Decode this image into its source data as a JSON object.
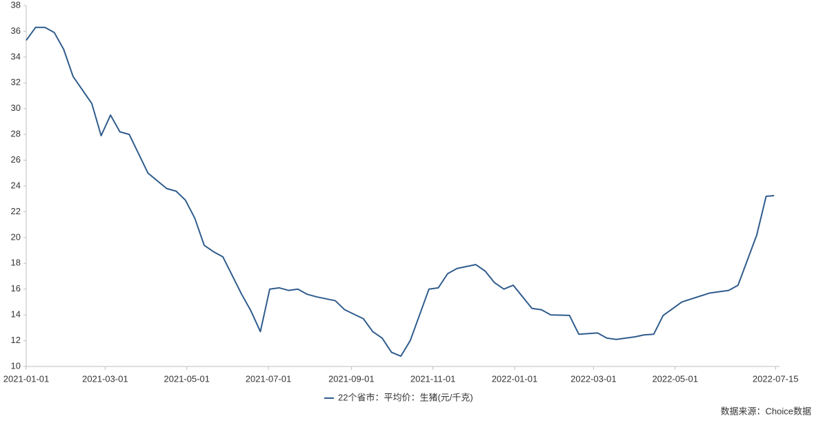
{
  "chart_data": {
    "type": "line",
    "x": [
      "2021-01-01",
      "2021-01-08",
      "2021-01-15",
      "2021-01-22",
      "2021-01-29",
      "2021-02-05",
      "2021-02-19",
      "2021-02-26",
      "2021-03-05",
      "2021-03-12",
      "2021-03-19",
      "2021-04-02",
      "2021-04-16",
      "2021-04-23",
      "2021-04-30",
      "2021-05-07",
      "2021-05-14",
      "2021-05-21",
      "2021-05-28",
      "2021-06-11",
      "2021-06-18",
      "2021-06-25",
      "2021-07-02",
      "2021-07-09",
      "2021-07-16",
      "2021-07-23",
      "2021-07-30",
      "2021-08-06",
      "2021-08-20",
      "2021-08-27",
      "2021-09-10",
      "2021-09-17",
      "2021-09-24",
      "2021-10-01",
      "2021-10-08",
      "2021-10-15",
      "2021-10-29",
      "2021-11-05",
      "2021-11-12",
      "2021-11-19",
      "2021-12-03",
      "2021-12-10",
      "2021-12-17",
      "2021-12-24",
      "2021-12-31",
      "2022-01-14",
      "2022-01-21",
      "2022-01-28",
      "2022-02-11",
      "2022-02-18",
      "2022-03-04",
      "2022-03-11",
      "2022-03-18",
      "2022-04-01",
      "2022-04-08",
      "2022-04-15",
      "2022-04-22",
      "2022-05-06",
      "2022-05-27",
      "2022-06-10",
      "2022-06-17",
      "2022-07-01",
      "2022-07-08",
      "2022-07-14"
    ],
    "series": [
      {
        "name": "22个省市：平均价：生猪(元/千克)",
        "color": "#2e5b8c",
        "values": [
          35.3,
          36.3,
          36.3,
          35.9,
          34.6,
          32.5,
          30.4,
          27.9,
          29.5,
          28.2,
          28.0,
          25.0,
          23.8,
          23.6,
          22.9,
          21.5,
          19.4,
          18.9,
          18.5,
          15.6,
          14.3,
          12.7,
          16.0,
          16.1,
          15.9,
          16.0,
          15.6,
          15.4,
          15.1,
          14.4,
          13.7,
          12.7,
          12.2,
          11.1,
          10.8,
          12.0,
          16.0,
          16.1,
          17.2,
          17.6,
          17.9,
          17.4,
          16.5,
          16.0,
          16.3,
          14.5,
          14.4,
          14.0,
          13.96,
          12.5,
          12.6,
          12.2,
          12.1,
          12.3,
          12.45,
          12.5,
          13.95,
          15.0,
          15.7,
          15.9,
          16.3,
          20.2,
          23.2,
          23.25
        ]
      }
    ],
    "xlim": [
      "2021-01-01",
      "2022-07-18"
    ],
    "xticks": [
      "2021-01-01",
      "2021-03-01",
      "2021-05-01",
      "2021-07-01",
      "2021-09-01",
      "2021-11-01",
      "2022-01-01",
      "2022-03-01",
      "2022-05-01",
      "2022-07-15"
    ],
    "ylim": [
      10,
      38
    ],
    "yticks": [
      10,
      12,
      14,
      16,
      18,
      20,
      22,
      24,
      26,
      28,
      30,
      32,
      34,
      36,
      38
    ],
    "grid": false,
    "source": "数据来源：Choice数据"
  }
}
